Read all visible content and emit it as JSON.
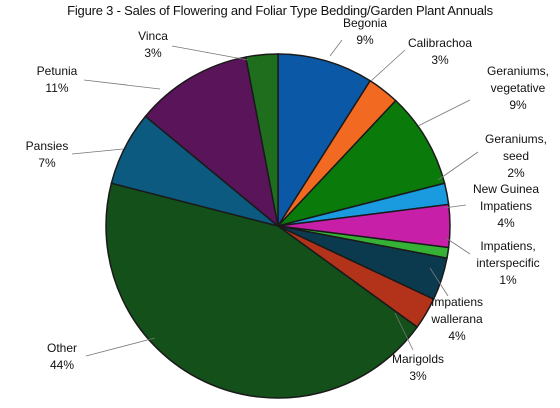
{
  "chart_data": {
    "type": "pie",
    "title": "Figure 3 - Sales of  Flowering and Foliar Type Bedding/Garden Plant Annuals",
    "start_angle_deg": 0,
    "direction": "clockwise",
    "slices": [
      {
        "label_lines": [
          "Begonia"
        ],
        "value": 9,
        "value_label": "9%",
        "color": "#0b59a6"
      },
      {
        "label_lines": [
          "Calibrachoa"
        ],
        "value": 3,
        "value_label": "3%",
        "color": "#f26a21"
      },
      {
        "label_lines": [
          "Geraniums,",
          "vegetative"
        ],
        "value": 9,
        "value_label": "9%",
        "color": "#0a7a0a"
      },
      {
        "label_lines": [
          "Geraniums,",
          "seed"
        ],
        "value": 2,
        "value_label": "2%",
        "color": "#1a9be0"
      },
      {
        "label_lines": [
          "New Guinea",
          "Impatiens"
        ],
        "value": 4,
        "value_label": "4%",
        "color": "#c71fa8"
      },
      {
        "label_lines": [
          "Impatiens,",
          "interspecific"
        ],
        "value": 1,
        "value_label": "1%",
        "color": "#35b135"
      },
      {
        "label_lines": [
          "Impatiens",
          "wallerana"
        ],
        "value": 4,
        "value_label": "4%",
        "color": "#0b3a4f"
      },
      {
        "label_lines": [
          "Marigolds"
        ],
        "value": 3,
        "value_label": "3%",
        "color": "#b3321a"
      },
      {
        "label_lines": [
          "Other"
        ],
        "value": 44,
        "value_label": "44%",
        "color": "#14501a"
      },
      {
        "label_lines": [
          "Pansies"
        ],
        "value": 7,
        "value_label": "7%",
        "color": "#0c5a80"
      },
      {
        "label_lines": [
          "Petunia"
        ],
        "value": 11,
        "value_label": "11%",
        "color": "#5a145a"
      },
      {
        "label_lines": [
          "Vinca"
        ],
        "value": 3,
        "value_label": "3%",
        "color": "#1e6e1e"
      }
    ]
  }
}
